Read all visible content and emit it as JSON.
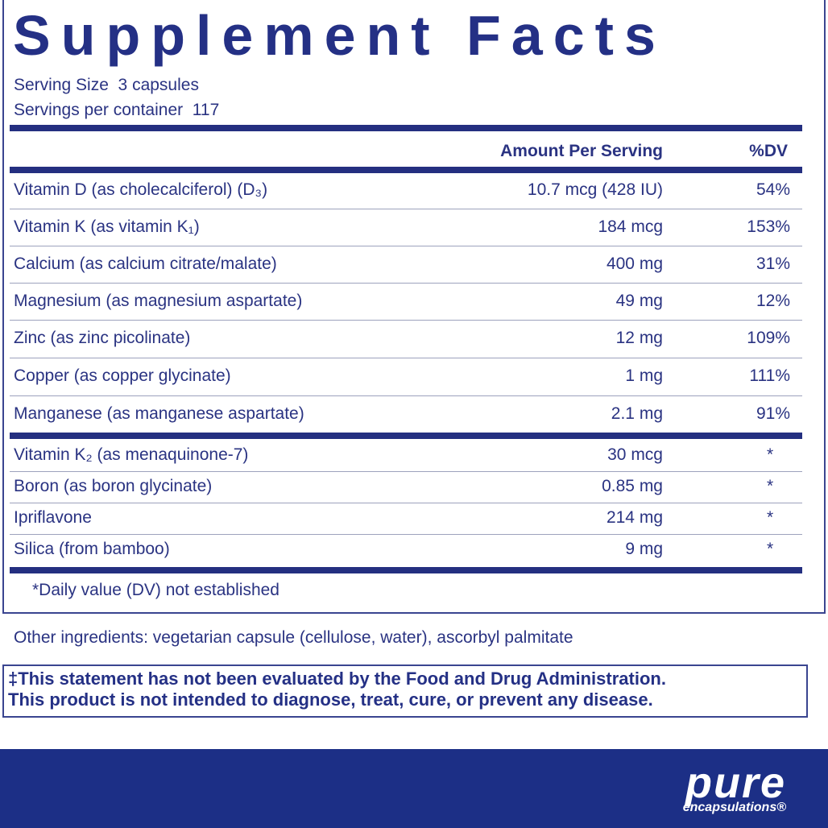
{
  "title": "Supplement Facts",
  "serving": [
    "Serving Size  3 capsules",
    "Servings per container  117"
  ],
  "header": {
    "amount": "Amount Per Serving",
    "dv": "%DV"
  },
  "rows": [
    [
      "Vitamin D (as cholecalciferol) (D₃)",
      "10.7 mcg (428 IU)",
      "54%"
    ],
    [
      "Vitamin K (as vitamin K₁)",
      "184 mcg",
      "153%"
    ],
    [
      "Calcium (as calcium citrate/malate)",
      "400 mg",
      "31%"
    ],
    [
      "Magnesium (as magnesium aspartate)",
      "49 mg",
      "12%"
    ],
    [
      "Zinc (as zinc picolinate)",
      "12 mg",
      "109%"
    ],
    [
      "Copper (as copper glycinate)",
      "1 mg",
      "111%"
    ],
    [
      "Manganese (as manganese aspartate)",
      "2.1 mg",
      "91%"
    ],
    [
      "Vitamin K₂ (as menaquinone-7)",
      "30 mcg",
      "*"
    ],
    [
      "Boron (as boron glycinate)",
      "0.85 mg",
      "*"
    ],
    [
      "Ipriflavone",
      "214 mg",
      "*"
    ],
    [
      "Silica (from bamboo)",
      "9 mg",
      "*"
    ]
  ],
  "footnote": "*Daily value (DV) not established",
  "other": "Other ingredients: vegetarian capsule (cellulose, water), ascorbyl palmitate",
  "statement": [
    "‡This statement has not been evaluated by the Food and Drug Administration.",
    "This product is not intended to diagnose, treat, cure, or prevent any disease."
  ],
  "logo": {
    "brand": "pure",
    "sub": "encapsulations®"
  }
}
